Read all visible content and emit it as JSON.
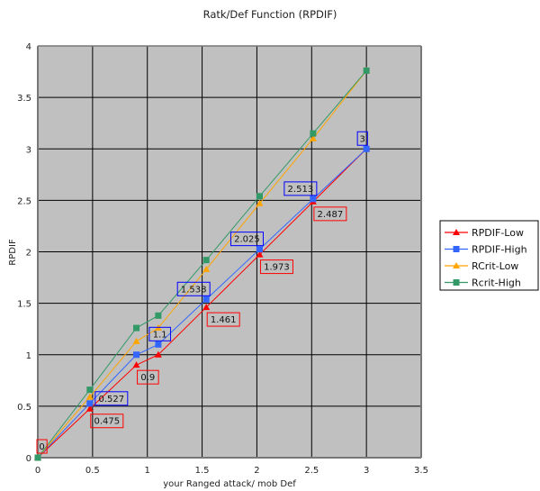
{
  "chart_data": {
    "type": "line",
    "title": "Ratk/Def Function (RPDIF)",
    "xlabel": "your Ranged attack/ mob Def",
    "ylabel": "RPDIF",
    "xlim": [
      0,
      3.5
    ],
    "ylim": [
      0,
      4
    ],
    "x_ticks": [
      "0",
      "0.5",
      "1",
      "1.5",
      "2",
      "2.5",
      "3",
      "3.5"
    ],
    "y_ticks": [
      "0",
      "0.5",
      "1",
      "1.5",
      "2",
      "2.5",
      "3",
      "3.5",
      "4"
    ],
    "grid": true,
    "legend_position": "right",
    "plot_background": "#c0c0c0",
    "series": [
      {
        "name": "RPDIF-Low",
        "color": "#ff0000",
        "marker": "triangle",
        "x": [
          0,
          0.475,
          0.9,
          1.1,
          1.538,
          2.025,
          2.513,
          3
        ],
        "values": [
          0,
          0.475,
          0.9,
          1.0,
          1.461,
          1.973,
          2.487,
          3
        ],
        "data_labels": [
          {
            "index": 0,
            "text": "0"
          },
          {
            "index": 1,
            "text": "0.475"
          },
          {
            "index": 2,
            "text": "0.9"
          },
          {
            "index": 4,
            "text": "1.461"
          },
          {
            "index": 5,
            "text": "1.973"
          },
          {
            "index": 6,
            "text": "2.487"
          }
        ]
      },
      {
        "name": "RPDIF-High",
        "color": "#3366ff",
        "marker": "square",
        "x": [
          0,
          0.475,
          0.9,
          1.1,
          1.538,
          2.025,
          2.513,
          3
        ],
        "values": [
          0,
          0.527,
          1.0,
          1.1,
          1.538,
          2.025,
          2.513,
          3
        ],
        "data_labels": [
          {
            "index": 1,
            "text": "0.527"
          },
          {
            "index": 3,
            "text": "1.1"
          },
          {
            "index": 4,
            "text": "1.538"
          },
          {
            "index": 5,
            "text": "2.025"
          },
          {
            "index": 6,
            "text": "2.513"
          },
          {
            "index": 7,
            "text": "3"
          }
        ]
      },
      {
        "name": "RCrit-Low",
        "color": "#ffa500",
        "marker": "triangle",
        "x": [
          0,
          0.475,
          0.9,
          1.1,
          1.538,
          2.025,
          2.513,
          3
        ],
        "values": [
          0,
          0.59,
          1.13,
          1.26,
          1.83,
          2.47,
          3.1,
          3.76
        ],
        "data_labels": []
      },
      {
        "name": "Rcrit-High",
        "color": "#339966",
        "marker": "square",
        "x": [
          0,
          0.475,
          0.9,
          1.1,
          1.538,
          2.025,
          2.513,
          3
        ],
        "values": [
          0,
          0.66,
          1.26,
          1.38,
          1.92,
          2.54,
          3.15,
          3.76
        ],
        "data_labels": []
      }
    ]
  }
}
